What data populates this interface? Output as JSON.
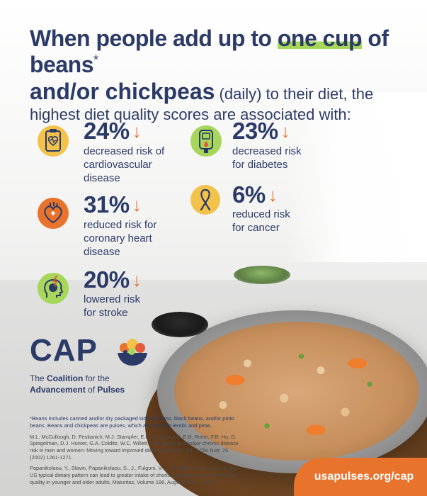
{
  "headline": {
    "line1_pre": "When people add up to ",
    "line1_highlight": "one cup",
    "line1_post": " of beans",
    "asterisk": "*",
    "line2_bold": "and/or chickpeas",
    "line2_light": " (daily) to their diet, the",
    "line3": "highest diet quality scores are associated with:"
  },
  "stats": [
    {
      "icon": "heart-clipboard-icon",
      "value": "24%",
      "desc": [
        "decreased risk of",
        "cardiovascular",
        "disease"
      ]
    },
    {
      "icon": "glucose-meter-icon",
      "value": "23%",
      "desc": [
        "decreased risk",
        "for diabetes"
      ]
    },
    {
      "icon": "heart-organ-icon",
      "value": "31%",
      "desc": [
        "reduced risk for",
        "coronary heart",
        "disease"
      ]
    },
    {
      "icon": "cancer-ribbon-icon",
      "value": "6%",
      "desc": [
        "reduced risk",
        "for cancer"
      ]
    },
    {
      "icon": "brain-head-icon",
      "value": "20%",
      "desc": [
        "lowered risk",
        "for stroke"
      ]
    }
  ],
  "arrow_symbol": "↓",
  "logo": {
    "word": "CAP",
    "tagline_pre1": "The ",
    "tagline_bold1": "Coalition",
    "tagline_post1": " for the",
    "tagline_bold2": "Advancement",
    "tagline_post2": " of ",
    "tagline_bold3": "Pulses"
  },
  "footnotes": {
    "note": "*Beans includes canned and/or dry packaged kidney beans, black beans, and/or pinto beans. Beans and chickpeas are pulses, which also include lentils and peas.",
    "ref1": "M.L. McCullough, D. Feskanich, M.J. Stampfer, E.L. Giovannucci, E.B. Rimm, F.B. Hu, D. Spiegelman, D.J. Hunter, G.A. Colditz, W.C. Willett. Diet quality and major chronic disease risk in men and women: Moving toward improved dietary guidance. Am J Clin Nutr. 76 (2002) 1261-1271.",
    "ref2": "Papanikolaou, Y., Slavin, Papanikolaou, S., J., Fulgoni, V. L. III, Adding more beans to the US typical dietary pattern can lead to greater intake of shortfall nutrients and a higher diet quality in younger and older adults, Maturitas, Volume 186, August 2024, 108012"
  },
  "url": "usapulses.org/cap",
  "colors": {
    "navy": "#2b3a67",
    "orange": "#e8732c",
    "green": "#a6d65a",
    "yellow": "#f3c24a",
    "red": "#e55a3a"
  }
}
